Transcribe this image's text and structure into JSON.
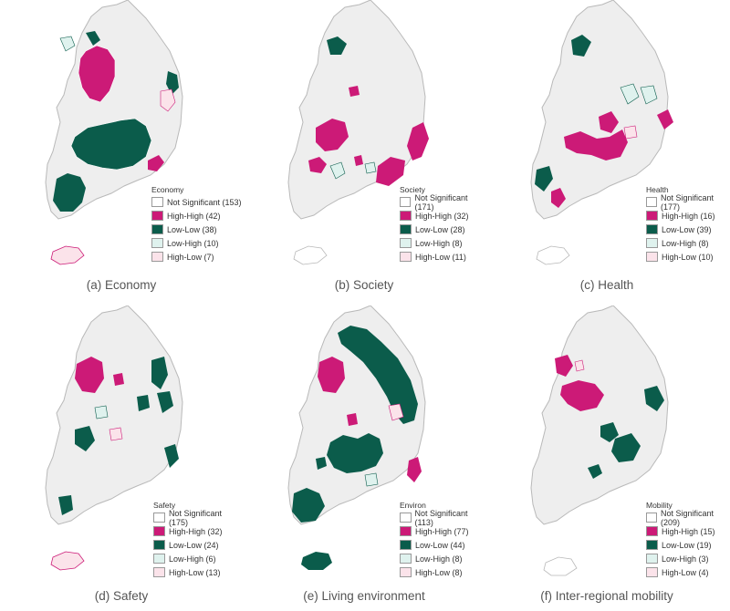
{
  "colors": {
    "not_significant": "#ffffff",
    "high_high": "#cc1a77",
    "low_low": "#0b5c4b",
    "low_high": "#dff2ee",
    "high_low": "#fbe3ea",
    "base_fill": "#eeeeee",
    "base_stroke": "#b9b9b9"
  },
  "panels": [
    {
      "caption": "(a) Economy",
      "legend_title": "Economy",
      "legend": [
        {
          "key": "not_significant",
          "label": "Not Significant (153)"
        },
        {
          "key": "high_high",
          "label": "High-High (42)"
        },
        {
          "key": "low_low",
          "label": "Low-Low (38)"
        },
        {
          "key": "low_high",
          "label": "Low-High (10)"
        },
        {
          "key": "high_low",
          "label": "High-Low (7)"
        }
      ]
    },
    {
      "caption": "(b) Society",
      "legend_title": "Society",
      "legend": [
        {
          "key": "not_significant",
          "label": "Not Significant (171)"
        },
        {
          "key": "high_high",
          "label": "High-High (32)"
        },
        {
          "key": "low_low",
          "label": "Low-Low (28)"
        },
        {
          "key": "low_high",
          "label": "Low-High (8)"
        },
        {
          "key": "high_low",
          "label": "High-Low (11)"
        }
      ]
    },
    {
      "caption": "(c) Health",
      "legend_title": "Health",
      "legend": [
        {
          "key": "not_significant",
          "label": "Not Significant (177)"
        },
        {
          "key": "high_high",
          "label": "High-High (16)"
        },
        {
          "key": "low_low",
          "label": "Low-Low (39)"
        },
        {
          "key": "low_high",
          "label": "Low-High (8)"
        },
        {
          "key": "high_low",
          "label": "High-Low (10)"
        }
      ]
    },
    {
      "caption": "(d) Safety",
      "legend_title": "Safety",
      "legend": [
        {
          "key": "not_significant",
          "label": "Not Significant (175)"
        },
        {
          "key": "high_high",
          "label": "High-High (32)"
        },
        {
          "key": "low_low",
          "label": "Low-Low (24)"
        },
        {
          "key": "low_high",
          "label": "Low-High (6)"
        },
        {
          "key": "high_low",
          "label": "High-Low (13)"
        }
      ]
    },
    {
      "caption": "(e) Living environment",
      "legend_title": "Environ",
      "legend": [
        {
          "key": "not_significant",
          "label": "Not Significant (113)"
        },
        {
          "key": "high_high",
          "label": "High-High (77)"
        },
        {
          "key": "low_low",
          "label": "Low-Low (44)"
        },
        {
          "key": "low_high",
          "label": "Low-High (8)"
        },
        {
          "key": "high_low",
          "label": "High-Low (8)"
        }
      ]
    },
    {
      "caption": "(f) Inter-regional mobility",
      "legend_title": "Mobility",
      "legend": [
        {
          "key": "not_significant",
          "label": "Not Significant (209)"
        },
        {
          "key": "high_high",
          "label": "High-High (15)"
        },
        {
          "key": "low_low",
          "label": "Low-Low (19)"
        },
        {
          "key": "low_high",
          "label": "Low-High (3)"
        },
        {
          "key": "high_low",
          "label": "High-Low (4)"
        }
      ]
    }
  ]
}
